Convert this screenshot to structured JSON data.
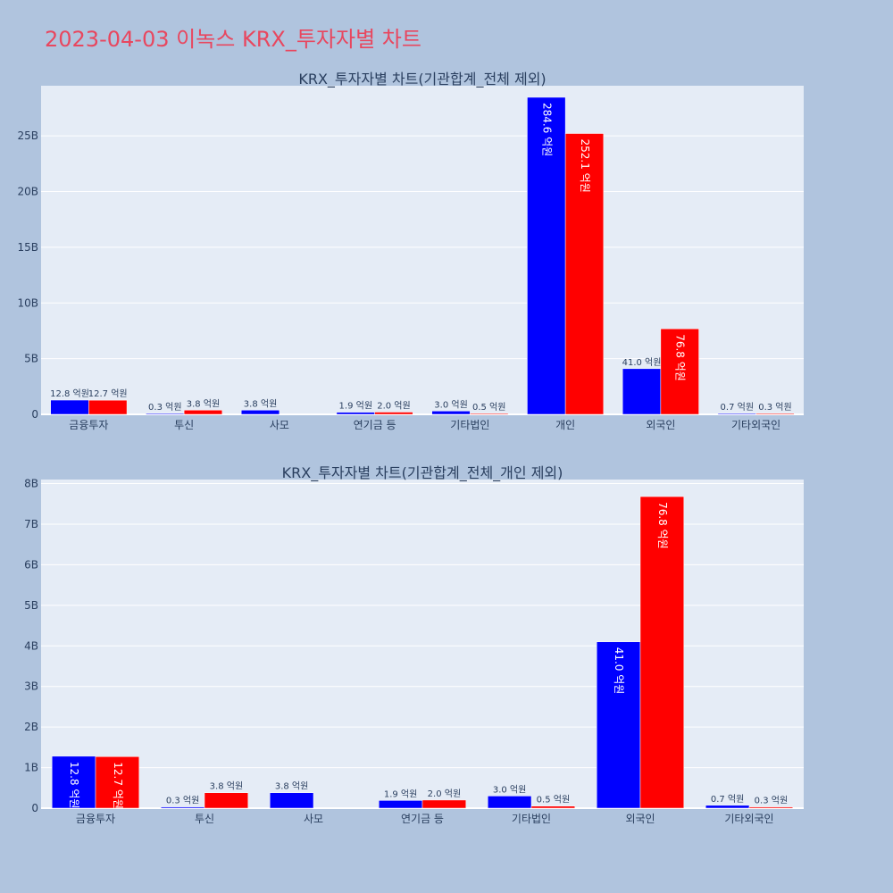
{
  "title": "2023-04-03 이녹스 KRX_투자자별 차트",
  "colors": {
    "background": "#b0c4de",
    "plot_bg": "#e5ecf6",
    "series_blue": "#0000ff",
    "series_red": "#ff0000",
    "title": "#e8475f"
  },
  "chart_data": [
    {
      "type": "bar",
      "title": "KRX_투자자별 차트(기관합계_전체 제외)",
      "categories": [
        "금융투자",
        "투신",
        "사모",
        "연기금 등",
        "기타법인",
        "개인",
        "외국인",
        "기타외국인"
      ],
      "ylim": [
        0,
        29500000000
      ],
      "yticks": [
        0,
        5000000000,
        10000000000,
        15000000000,
        20000000000,
        25000000000
      ],
      "ytick_labels": [
        "0",
        "5B",
        "10B",
        "15B",
        "20B",
        "25B"
      ],
      "grid": true,
      "series": [
        {
          "values": [
            1280000000,
            30000000,
            380000000,
            190000000,
            300000000,
            28460000000,
            4100000000,
            70000000
          ],
          "labels": [
            "12.8 억원",
            "0.3 억원",
            "3.8 억원",
            "1.9 억원",
            "3.0 억원",
            "284.6 억원",
            "41.0 억원",
            "0.7 억원"
          ]
        },
        {
          "values": [
            1270000000,
            380000000,
            null,
            200000000,
            50000000,
            25210000000,
            7680000000,
            30000000
          ],
          "labels": [
            "12.7 억원",
            "3.8 억원",
            "",
            "2.0 억원",
            "0.5 억원",
            "252.1 억원",
            "76.8 억원",
            "0.3 억원"
          ]
        }
      ]
    },
    {
      "type": "bar",
      "title": "KRX_투자자별 차트(기관합계_전체_개인 제외)",
      "categories": [
        "금융투자",
        "투신",
        "사모",
        "연기금 등",
        "기타법인",
        "외국인",
        "기타외국인"
      ],
      "ylim": [
        0,
        8100000000
      ],
      "yticks": [
        0,
        1000000000,
        2000000000,
        3000000000,
        4000000000,
        5000000000,
        6000000000,
        7000000000,
        8000000000
      ],
      "ytick_labels": [
        "0",
        "1B",
        "2B",
        "3B",
        "4B",
        "5B",
        "6B",
        "7B",
        "8B"
      ],
      "grid": true,
      "series": [
        {
          "values": [
            1280000000,
            30000000,
            380000000,
            190000000,
            300000000,
            4100000000,
            70000000
          ],
          "labels": [
            "12.8 억원",
            "0.3 억원",
            "3.8 억원",
            "1.9 억원",
            "3.0 억원",
            "41.0 억원",
            "0.7 억원"
          ]
        },
        {
          "values": [
            1270000000,
            380000000,
            null,
            200000000,
            50000000,
            7680000000,
            30000000
          ],
          "labels": [
            "12.7 억원",
            "3.8 억원",
            "",
            "2.0 억원",
            "0.5 억원",
            "76.8 억원",
            "0.3 억원"
          ]
        }
      ]
    }
  ]
}
